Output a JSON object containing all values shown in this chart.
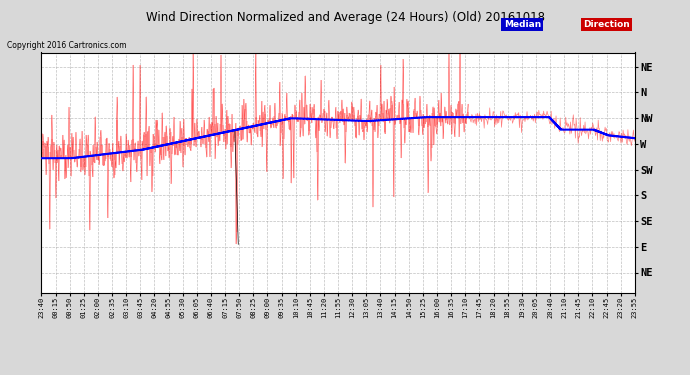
{
  "title": "Wind Direction Normalized and Average (24 Hours) (Old) 20161018",
  "copyright": "Copyright 2016 Cartronics.com",
  "background_color": "#d8d8d8",
  "plot_bg_color": "#ffffff",
  "grid_color": "#aaaaaa",
  "red_color": "#ff0000",
  "blue_color": "#0000ff",
  "ytick_vals": [
    45,
    90,
    135,
    180,
    225,
    270,
    315,
    360,
    405
  ],
  "ytick_names": [
    "NE",
    "E",
    "SE",
    "S",
    "SW",
    "W",
    "NW",
    "N",
    "NE"
  ],
  "ylim_low": 10,
  "ylim_high": 430,
  "xtick_labels": [
    "23:40",
    "00:15",
    "00:50",
    "01:25",
    "02:00",
    "02:35",
    "03:10",
    "03:45",
    "04:20",
    "04:55",
    "05:30",
    "06:05",
    "06:40",
    "07:15",
    "07:50",
    "08:25",
    "09:00",
    "09:35",
    "10:10",
    "10:45",
    "11:20",
    "11:55",
    "12:30",
    "13:05",
    "13:40",
    "14:15",
    "14:50",
    "15:25",
    "16:00",
    "16:35",
    "17:10",
    "17:45",
    "18:20",
    "18:55",
    "19:30",
    "20:05",
    "20:40",
    "21:10",
    "21:45",
    "22:10",
    "22:45",
    "23:20",
    "23:55"
  ],
  "median_color": "#0000cc",
  "median_bg": "#0000cc",
  "direction_bg": "#cc0000"
}
